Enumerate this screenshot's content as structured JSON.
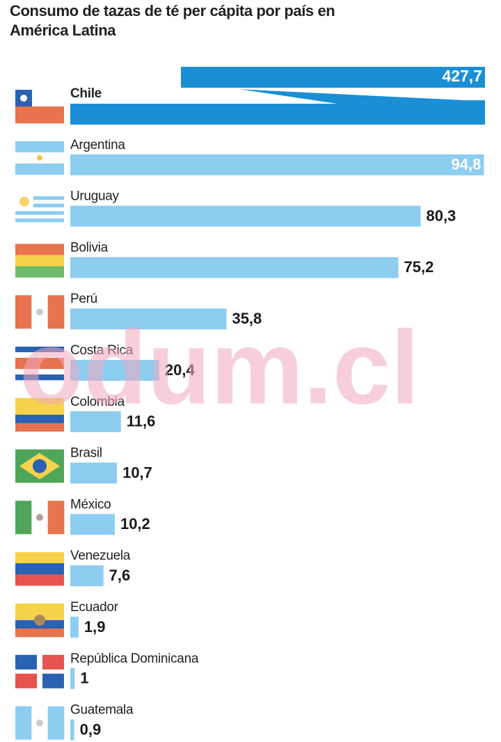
{
  "chart_data": {
    "type": "bar",
    "orientation": "horizontal",
    "title": "Consumo de tazas de té per cápita por país en América Latina",
    "categories": [
      "Chile",
      "Argentina",
      "Uruguay",
      "Bolivia",
      "Perú",
      "Costa Rica",
      "Colombia",
      "Brasil",
      "México",
      "Venezuela",
      "Ecuador",
      "República Dominicana",
      "Guatemala"
    ],
    "values": [
      427.7,
      94.8,
      80.3,
      75.2,
      35.8,
      20.4,
      11.6,
      10.7,
      10.2,
      7.6,
      1.9,
      1,
      0.9
    ],
    "value_labels": [
      "427,7",
      "94,8",
      "80,3",
      "75,2",
      "35,8",
      "20,4",
      "11,6",
      "10,7",
      "10,2",
      "7,6",
      "1,9",
      "1",
      "0,9"
    ],
    "color": "#8ccdf0",
    "highlight_color": "#1a8fd6",
    "watermark": "odum.cl"
  }
}
